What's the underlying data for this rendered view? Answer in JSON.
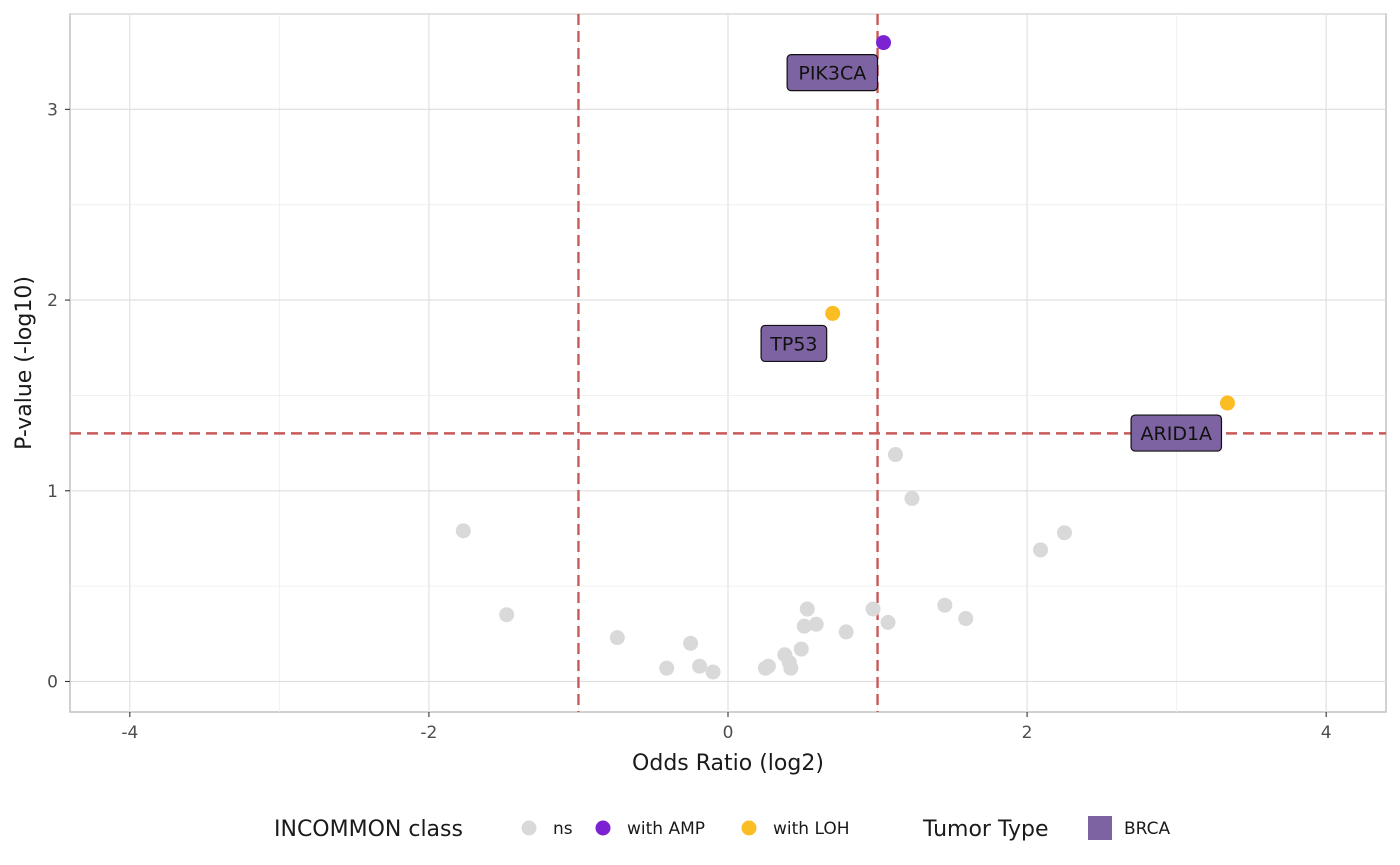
{
  "chart_data": {
    "type": "scatter",
    "xlabel": "Odds Ratio (log2)",
    "ylabel": "P-value (-log10)",
    "xlim": [
      -4.4,
      4.4
    ],
    "ylim": [
      -0.16,
      3.5
    ],
    "x_ticks": [
      -4,
      -2,
      0,
      2,
      4
    ],
    "x_tick_labels": [
      "-4",
      "-2",
      "0",
      "2",
      "4"
    ],
    "y_ticks": [
      0,
      1,
      2,
      3
    ],
    "y_tick_labels": [
      "0",
      "1",
      "2",
      "3"
    ],
    "grid": true,
    "reference_lines": {
      "vertical": [
        -1,
        1
      ],
      "horizontal": [
        1.301
      ],
      "color": "#c85a5a",
      "style": "dashed"
    },
    "classes": {
      "ns": "#d9d9d9",
      "with AMP": "#7b22d2",
      "with LOH": "#fbbd24"
    },
    "points": [
      {
        "x": 1.04,
        "y": 3.35,
        "class": "with AMP",
        "label": "PIK3CA"
      },
      {
        "x": 0.7,
        "y": 1.93,
        "class": "with LOH",
        "label": "TP53"
      },
      {
        "x": 3.34,
        "y": 1.46,
        "class": "with LOH",
        "label": "ARID1A"
      },
      {
        "x": 1.12,
        "y": 1.19,
        "class": "ns"
      },
      {
        "x": 1.23,
        "y": 0.96,
        "class": "ns"
      },
      {
        "x": -1.77,
        "y": 0.79,
        "class": "ns"
      },
      {
        "x": 2.25,
        "y": 0.78,
        "class": "ns"
      },
      {
        "x": 2.09,
        "y": 0.69,
        "class": "ns"
      },
      {
        "x": -1.48,
        "y": 0.35,
        "class": "ns"
      },
      {
        "x": 1.45,
        "y": 0.4,
        "class": "ns"
      },
      {
        "x": 1.59,
        "y": 0.33,
        "class": "ns"
      },
      {
        "x": 0.97,
        "y": 0.38,
        "class": "ns"
      },
      {
        "x": 0.53,
        "y": 0.38,
        "class": "ns"
      },
      {
        "x": 1.07,
        "y": 0.31,
        "class": "ns"
      },
      {
        "x": 0.59,
        "y": 0.3,
        "class": "ns"
      },
      {
        "x": 0.51,
        "y": 0.29,
        "class": "ns"
      },
      {
        "x": 0.79,
        "y": 0.26,
        "class": "ns"
      },
      {
        "x": -0.74,
        "y": 0.23,
        "class": "ns"
      },
      {
        "x": -0.25,
        "y": 0.2,
        "class": "ns"
      },
      {
        "x": 0.49,
        "y": 0.17,
        "class": "ns"
      },
      {
        "x": 0.38,
        "y": 0.14,
        "class": "ns"
      },
      {
        "x": 0.41,
        "y": 0.1,
        "class": "ns"
      },
      {
        "x": -0.19,
        "y": 0.08,
        "class": "ns"
      },
      {
        "x": 0.42,
        "y": 0.07,
        "class": "ns"
      },
      {
        "x": -0.41,
        "y": 0.07,
        "class": "ns"
      },
      {
        "x": 0.25,
        "y": 0.07,
        "class": "ns"
      },
      {
        "x": 0.27,
        "y": 0.08,
        "class": "ns"
      },
      {
        "x": -0.1,
        "y": 0.05,
        "class": "ns"
      }
    ],
    "legend": {
      "placement": "bottom",
      "class_title": "INCOMMON class",
      "class_entries": [
        "ns",
        "with AMP",
        "with LOH"
      ],
      "tumor_title": "Tumor Type",
      "tumor_entries": [
        {
          "name": "BRCA",
          "color": "#7d63a1"
        }
      ]
    }
  }
}
